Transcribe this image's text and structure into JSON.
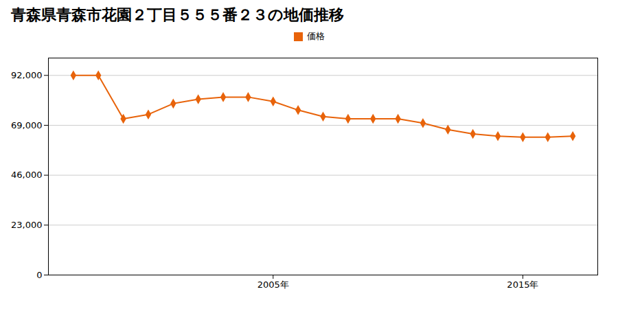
{
  "chart_data": {
    "type": "line",
    "title": "青森県青森市花園２丁目５５５番２３の地価推移",
    "x": [
      1997,
      1998,
      1999,
      2000,
      2001,
      2002,
      2003,
      2004,
      2005,
      2006,
      2007,
      2008,
      2009,
      2010,
      2011,
      2012,
      2013,
      2014,
      2015,
      2016,
      2017
    ],
    "series": [
      {
        "name": "価格",
        "color": "#E8630A",
        "marker": "diamond",
        "values": [
          92000,
          92000,
          72000,
          74000,
          79000,
          81000,
          82000,
          82000,
          80000,
          76000,
          73000,
          72000,
          72000,
          72000,
          70000,
          67000,
          65000,
          64000,
          63500,
          63500,
          64000
        ]
      }
    ],
    "xlim": [
      1996,
      2018
    ],
    "xticks": [
      {
        "value": 2005,
        "label": "2005年"
      },
      {
        "value": 2015,
        "label": "2015年"
      }
    ],
    "ylim": [
      0,
      100000
    ],
    "yticks": [
      0,
      {
        "value": 23000,
        "label": "23,000"
      },
      {
        "value": 46000,
        "label": "46,000"
      },
      {
        "value": 69000,
        "label": "69,000"
      },
      {
        "value": 92000,
        "label": "92,000"
      }
    ],
    "grid": "y",
    "legend": "top"
  }
}
